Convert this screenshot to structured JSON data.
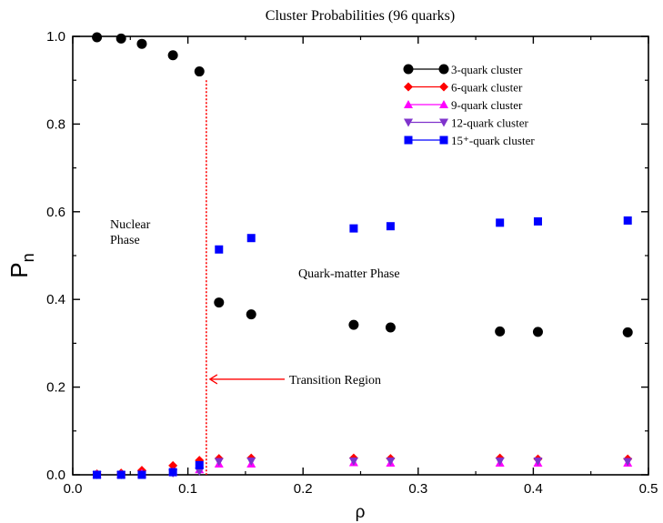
{
  "chart_data": {
    "type": "scatter",
    "title": "Cluster Probabilities (96 quarks)",
    "xlabel": "ρ",
    "ylabel": "P",
    "ylabel_subscript": "n",
    "xlim": [
      0.0,
      0.5
    ],
    "ylim": [
      0.0,
      1.0
    ],
    "x_ticks": [
      "0.0",
      "0.1",
      "0.2",
      "0.3",
      "0.4",
      "0.5"
    ],
    "y_ticks": [
      "0.0",
      "0.2",
      "0.4",
      "0.6",
      "0.8",
      "1.0"
    ],
    "grid": false,
    "legend_position": "top-right",
    "series": [
      {
        "name": "3-quark cluster",
        "marker": "circle",
        "color": "#000000",
        "points": [
          [
            0.021,
            0.998
          ],
          [
            0.042,
            0.995
          ],
          [
            0.06,
            0.983
          ],
          [
            0.087,
            0.957
          ],
          [
            0.11,
            0.92
          ],
          [
            0.127,
            0.393
          ],
          [
            0.155,
            0.366
          ],
          [
            0.244,
            0.342
          ],
          [
            0.276,
            0.336
          ],
          [
            0.371,
            0.327
          ],
          [
            0.404,
            0.326
          ],
          [
            0.482,
            0.325
          ]
        ]
      },
      {
        "name": "6-quark cluster",
        "marker": "diamond",
        "color": "#ff0000",
        "points": [
          [
            0.021,
            0.002
          ],
          [
            0.042,
            0.004
          ],
          [
            0.06,
            0.01
          ],
          [
            0.087,
            0.021
          ],
          [
            0.11,
            0.033
          ],
          [
            0.127,
            0.037
          ],
          [
            0.155,
            0.038
          ],
          [
            0.244,
            0.038
          ],
          [
            0.276,
            0.037
          ],
          [
            0.371,
            0.038
          ],
          [
            0.404,
            0.036
          ],
          [
            0.482,
            0.036
          ]
        ]
      },
      {
        "name": "9-quark cluster",
        "marker": "triangle-up",
        "color": "#ff00ff",
        "points": [
          [
            0.021,
            0.001
          ],
          [
            0.042,
            0.001
          ],
          [
            0.06,
            0.003
          ],
          [
            0.087,
            0.007
          ],
          [
            0.11,
            0.012
          ],
          [
            0.127,
            0.025
          ],
          [
            0.155,
            0.025
          ],
          [
            0.244,
            0.028
          ],
          [
            0.276,
            0.027
          ],
          [
            0.371,
            0.027
          ],
          [
            0.404,
            0.027
          ],
          [
            0.482,
            0.027
          ]
        ]
      },
      {
        "name": "12-quark cluster",
        "marker": "triangle-down",
        "color": "#7f33cc",
        "points": [
          [
            0.021,
            0.0
          ],
          [
            0.042,
            0.0
          ],
          [
            0.06,
            0.001
          ],
          [
            0.087,
            0.004
          ],
          [
            0.11,
            0.008
          ],
          [
            0.127,
            0.03
          ],
          [
            0.155,
            0.031
          ],
          [
            0.244,
            0.031
          ],
          [
            0.276,
            0.031
          ],
          [
            0.371,
            0.031
          ],
          [
            0.404,
            0.031
          ],
          [
            0.482,
            0.03
          ]
        ]
      },
      {
        "name": "15⁺-quark cluster",
        "marker": "square",
        "color": "#0000ff",
        "points": [
          [
            0.021,
            0.0
          ],
          [
            0.042,
            0.0
          ],
          [
            0.06,
            0.0
          ],
          [
            0.087,
            0.006
          ],
          [
            0.11,
            0.022
          ],
          [
            0.127,
            0.514
          ],
          [
            0.155,
            0.54
          ],
          [
            0.244,
            0.562
          ],
          [
            0.276,
            0.567
          ],
          [
            0.371,
            0.575
          ],
          [
            0.404,
            0.578
          ],
          [
            0.482,
            0.58
          ]
        ]
      }
    ],
    "annotations": {
      "nuclear_phase_line1": "Nuclear",
      "nuclear_phase_line2": "Phase",
      "quark_matter_phase": "Quark-matter Phase",
      "transition_region": "Transition Region",
      "transition_x": 0.116,
      "transition_y_top": 0.9,
      "arrow_y": 0.218,
      "arrow_text_x": 0.188
    }
  }
}
